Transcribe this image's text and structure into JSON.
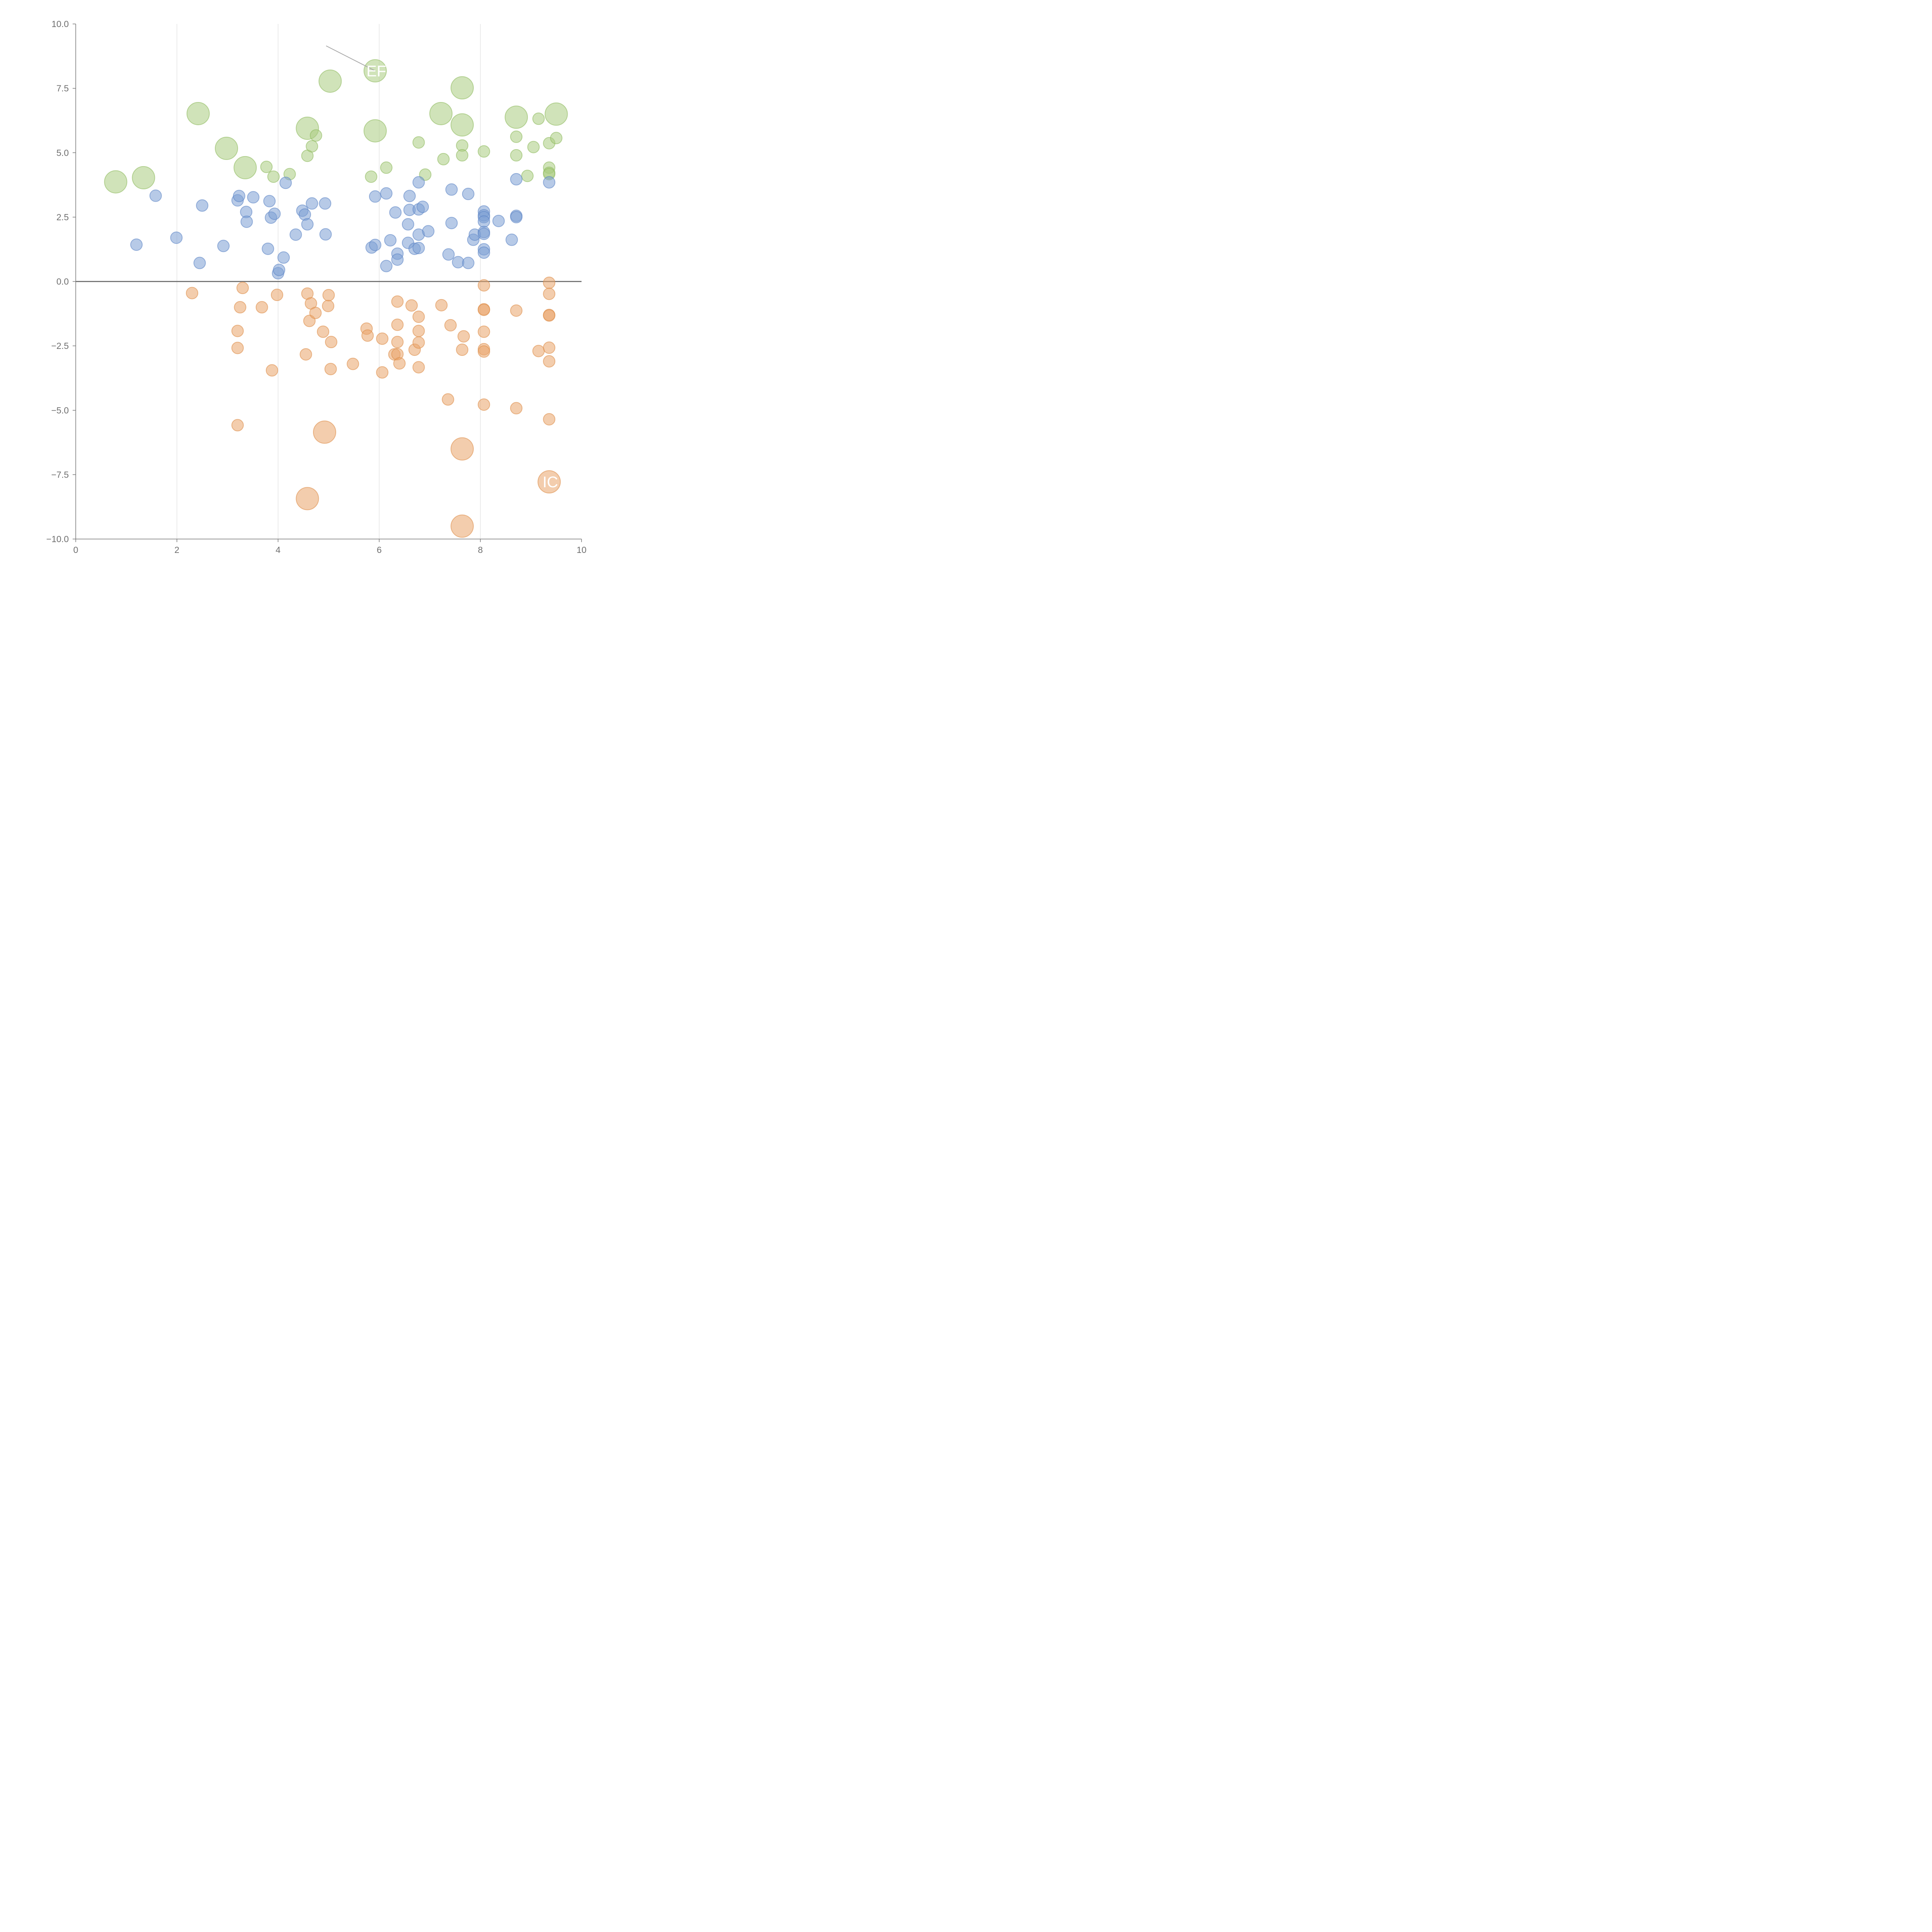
{
  "chart_data": {
    "type": "scatter",
    "title": "",
    "xlabel": "",
    "ylabel": "",
    "xlim": [
      0,
      10
    ],
    "ylim": [
      -10,
      10
    ],
    "x_ticks": [
      0,
      2,
      4,
      6,
      8,
      10
    ],
    "x_tick_labels": [
      "0",
      "2",
      "4",
      "6",
      "8",
      "10"
    ],
    "y_ticks": [
      10,
      7.5,
      5,
      2.5,
      0,
      -2.5,
      -5,
      -7.5,
      -10
    ],
    "y_tick_labels": [
      "10.0",
      "7.5",
      "5.0",
      "2.5",
      "0.0",
      "−2.5",
      "−5.0",
      "−7.5",
      "−10.0"
    ],
    "grid": "vertical",
    "reference_line_y": 0,
    "colors": {
      "green": "#a9cc7f",
      "green_stroke": "#8fbb5f",
      "blue": "#7b9fd4",
      "blue_stroke": "#5d86c6",
      "orange": "#eaa46a",
      "orange_stroke": "#de8d4a",
      "axis": "#777777",
      "grid": "#dedede",
      "text": "#6f6f6f"
    },
    "series": [
      {
        "name": "green",
        "color_key": "green",
        "points": [
          [
            0.79,
            3.87,
            "large"
          ],
          [
            1.34,
            4.03,
            "large"
          ],
          [
            2.42,
            6.52,
            "large"
          ],
          [
            2.98,
            5.17,
            "large"
          ],
          [
            3.35,
            4.42,
            "large"
          ],
          [
            3.77,
            4.45,
            "small"
          ],
          [
            3.91,
            4.07,
            "small"
          ],
          [
            4.23,
            4.17,
            "small"
          ],
          [
            4.58,
            5.95,
            "large"
          ],
          [
            4.58,
            4.88,
            "small"
          ],
          [
            4.67,
            5.25,
            "small"
          ],
          [
            4.75,
            5.67,
            "small"
          ],
          [
            5.03,
            7.78,
            "large"
          ],
          [
            5.84,
            4.07,
            "small"
          ],
          [
            5.92,
            8.18,
            "large"
          ],
          [
            5.92,
            5.85,
            "large"
          ],
          [
            6.14,
            4.42,
            "small"
          ],
          [
            6.78,
            5.4,
            "small"
          ],
          [
            6.91,
            4.15,
            "small"
          ],
          [
            7.22,
            6.52,
            "large"
          ],
          [
            7.27,
            4.75,
            "small"
          ],
          [
            7.64,
            7.52,
            "large"
          ],
          [
            7.64,
            6.08,
            "large"
          ],
          [
            7.64,
            5.28,
            "small"
          ],
          [
            7.64,
            4.9,
            "small"
          ],
          [
            8.07,
            5.05,
            "small"
          ],
          [
            8.71,
            6.38,
            "large"
          ],
          [
            8.71,
            5.62,
            "small"
          ],
          [
            8.71,
            4.9,
            "small"
          ],
          [
            8.93,
            4.1,
            "small"
          ],
          [
            9.05,
            5.22,
            "small"
          ],
          [
            9.15,
            6.32,
            "small"
          ],
          [
            9.36,
            5.37,
            "small"
          ],
          [
            9.36,
            4.42,
            "small"
          ],
          [
            9.36,
            4.22,
            "small"
          ],
          [
            9.36,
            4.17,
            "small"
          ],
          [
            9.5,
            6.5,
            "large"
          ],
          [
            9.5,
            5.57,
            "small"
          ]
        ]
      },
      {
        "name": "blue",
        "color_key": "blue",
        "points": [
          [
            1.2,
            1.43,
            "small"
          ],
          [
            1.58,
            3.33,
            "small"
          ],
          [
            1.99,
            1.7,
            "small"
          ],
          [
            2.45,
            0.72,
            "small"
          ],
          [
            2.5,
            2.95,
            "small"
          ],
          [
            2.92,
            1.38,
            "small"
          ],
          [
            3.2,
            3.15,
            "small"
          ],
          [
            3.23,
            3.32,
            "small"
          ],
          [
            3.37,
            2.7,
            "small"
          ],
          [
            3.38,
            2.32,
            "small"
          ],
          [
            3.51,
            3.27,
            "small"
          ],
          [
            3.8,
            1.27,
            "small"
          ],
          [
            3.83,
            3.12,
            "small"
          ],
          [
            3.86,
            2.48,
            "small"
          ],
          [
            3.93,
            2.63,
            "small"
          ],
          [
            4.0,
            0.32,
            "small"
          ],
          [
            4.02,
            0.45,
            "small"
          ],
          [
            4.11,
            0.93,
            "small"
          ],
          [
            4.15,
            3.83,
            "small"
          ],
          [
            4.35,
            1.82,
            "small"
          ],
          [
            4.48,
            2.75,
            "small"
          ],
          [
            4.53,
            2.6,
            "small"
          ],
          [
            4.58,
            2.22,
            "small"
          ],
          [
            4.67,
            3.03,
            "small"
          ],
          [
            4.93,
            3.03,
            "small"
          ],
          [
            4.94,
            1.83,
            "small"
          ],
          [
            5.85,
            1.32,
            "small"
          ],
          [
            5.92,
            3.3,
            "small"
          ],
          [
            5.92,
            1.42,
            "small"
          ],
          [
            6.14,
            0.6,
            "small"
          ],
          [
            6.14,
            3.42,
            "small"
          ],
          [
            6.22,
            1.6,
            "small"
          ],
          [
            6.32,
            2.68,
            "small"
          ],
          [
            6.36,
            1.08,
            "small"
          ],
          [
            6.36,
            0.85,
            "small"
          ],
          [
            6.57,
            2.22,
            "small"
          ],
          [
            6.57,
            1.5,
            "small"
          ],
          [
            6.6,
            3.32,
            "small"
          ],
          [
            6.6,
            2.78,
            "small"
          ],
          [
            6.7,
            1.27,
            "small"
          ],
          [
            6.78,
            3.85,
            "small"
          ],
          [
            6.78,
            2.8,
            "small"
          ],
          [
            6.78,
            1.82,
            "small"
          ],
          [
            6.78,
            1.3,
            "small"
          ],
          [
            6.86,
            2.9,
            "small"
          ],
          [
            6.97,
            1.95,
            "small"
          ],
          [
            7.37,
            1.05,
            "small"
          ],
          [
            7.43,
            3.57,
            "small"
          ],
          [
            7.43,
            2.27,
            "small"
          ],
          [
            7.56,
            0.75,
            "small"
          ],
          [
            7.76,
            0.72,
            "small"
          ],
          [
            7.76,
            3.4,
            "small"
          ],
          [
            7.86,
            1.62,
            "small"
          ],
          [
            7.89,
            1.82,
            "small"
          ],
          [
            8.07,
            2.72,
            "small"
          ],
          [
            8.07,
            2.57,
            "small"
          ],
          [
            8.07,
            2.5,
            "small"
          ],
          [
            8.07,
            2.33,
            "small"
          ],
          [
            8.07,
            1.92,
            "small"
          ],
          [
            8.07,
            1.85,
            "small"
          ],
          [
            8.07,
            1.25,
            "small"
          ],
          [
            8.07,
            1.12,
            "small"
          ],
          [
            8.36,
            2.35,
            "small"
          ],
          [
            8.62,
            1.62,
            "small"
          ],
          [
            8.71,
            3.97,
            "small"
          ],
          [
            8.71,
            2.55,
            "small"
          ],
          [
            8.71,
            2.5,
            "small"
          ],
          [
            9.36,
            3.85,
            "small"
          ]
        ]
      },
      {
        "name": "orange",
        "color_key": "orange",
        "points": [
          [
            2.3,
            -0.45,
            "small"
          ],
          [
            3.2,
            -1.92,
            "small"
          ],
          [
            3.2,
            -2.58,
            "small"
          ],
          [
            3.2,
            -5.58,
            "small"
          ],
          [
            3.25,
            -1.0,
            "small"
          ],
          [
            3.3,
            -0.25,
            "small"
          ],
          [
            3.68,
            -1.0,
            "small"
          ],
          [
            3.88,
            -3.45,
            "small"
          ],
          [
            3.98,
            -0.52,
            "small"
          ],
          [
            4.55,
            -2.83,
            "small"
          ],
          [
            4.58,
            -0.47,
            "small"
          ],
          [
            4.58,
            -8.43,
            "large"
          ],
          [
            4.62,
            -1.53,
            "small"
          ],
          [
            4.65,
            -0.85,
            "small"
          ],
          [
            4.74,
            -1.22,
            "small"
          ],
          [
            4.89,
            -1.95,
            "small"
          ],
          [
            4.92,
            -5.85,
            "large"
          ],
          [
            4.99,
            -0.95,
            "small"
          ],
          [
            5.0,
            -0.53,
            "small"
          ],
          [
            5.04,
            -3.4,
            "small"
          ],
          [
            5.05,
            -2.35,
            "small"
          ],
          [
            5.48,
            -3.2,
            "small"
          ],
          [
            5.75,
            -1.83,
            "small"
          ],
          [
            5.77,
            -2.1,
            "small"
          ],
          [
            6.06,
            -3.53,
            "small"
          ],
          [
            6.06,
            -2.22,
            "small"
          ],
          [
            6.3,
            -2.83,
            "small"
          ],
          [
            6.36,
            -0.78,
            "small"
          ],
          [
            6.36,
            -1.68,
            "small"
          ],
          [
            6.36,
            -2.35,
            "small"
          ],
          [
            6.36,
            -2.82,
            "small"
          ],
          [
            6.4,
            -3.18,
            "small"
          ],
          [
            6.64,
            -0.93,
            "small"
          ],
          [
            6.7,
            -2.65,
            "small"
          ],
          [
            6.78,
            -1.37,
            "small"
          ],
          [
            6.78,
            -1.92,
            "small"
          ],
          [
            6.78,
            -2.37,
            "small"
          ],
          [
            6.78,
            -3.33,
            "small"
          ],
          [
            7.23,
            -0.92,
            "small"
          ],
          [
            7.36,
            -4.58,
            "small"
          ],
          [
            7.41,
            -1.7,
            "small"
          ],
          [
            7.64,
            -2.65,
            "small"
          ],
          [
            7.64,
            -6.5,
            "large"
          ],
          [
            7.64,
            -9.5,
            "large"
          ],
          [
            7.67,
            -2.13,
            "small"
          ],
          [
            8.07,
            -0.15,
            "small"
          ],
          [
            8.07,
            -1.08,
            "small"
          ],
          [
            8.07,
            -1.1,
            "small"
          ],
          [
            8.07,
            -1.95,
            "small"
          ],
          [
            8.07,
            -2.63,
            "small"
          ],
          [
            8.07,
            -2.72,
            "small"
          ],
          [
            8.07,
            -4.78,
            "small"
          ],
          [
            8.71,
            -1.13,
            "small"
          ],
          [
            8.71,
            -4.92,
            "small"
          ],
          [
            9.15,
            -2.7,
            "small"
          ],
          [
            9.36,
            -0.05,
            "small"
          ],
          [
            9.36,
            -0.48,
            "small"
          ],
          [
            9.36,
            -1.3,
            "small"
          ],
          [
            9.36,
            -1.32,
            "small"
          ],
          [
            9.36,
            -2.57,
            "small"
          ],
          [
            9.36,
            -3.1,
            "small"
          ],
          [
            9.36,
            -5.35,
            "small"
          ],
          [
            9.36,
            -7.78,
            "large"
          ]
        ]
      }
    ],
    "annotations": [
      {
        "text": "EF",
        "x": 5.92,
        "y": 8.18,
        "leader_from_x": 4.95,
        "leader_from_y": 9.15
      },
      {
        "text": "IC",
        "x": 9.36,
        "y": -7.78
      }
    ]
  }
}
